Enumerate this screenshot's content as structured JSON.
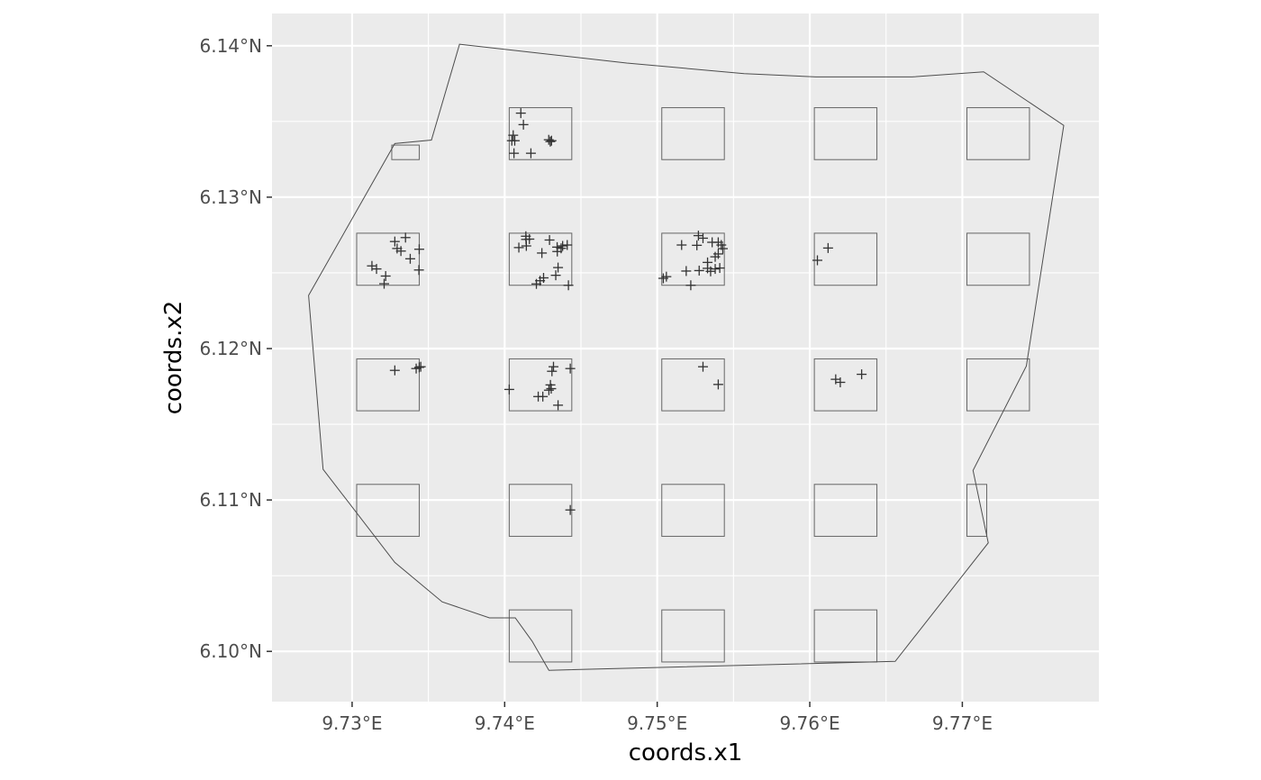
{
  "chart_data": {
    "type": "scatter",
    "title": "",
    "xlabel": "coords.x1",
    "ylabel": "coords.x2",
    "xlim": [
      9.72475,
      9.77895
    ],
    "ylim": [
      6.09668,
      6.14213
    ],
    "x_ticks": [
      {
        "value": 9.73,
        "label": "9.73°E"
      },
      {
        "value": 9.74,
        "label": "9.74°E"
      },
      {
        "value": 9.75,
        "label": "9.75°E"
      },
      {
        "value": 9.76,
        "label": "9.76°E"
      },
      {
        "value": 9.77,
        "label": "9.77°E"
      }
    ],
    "y_ticks": [
      {
        "value": 6.1,
        "label": "6.10°N"
      },
      {
        "value": 6.11,
        "label": "6.11°N"
      },
      {
        "value": 6.12,
        "label": "6.12°N"
      },
      {
        "value": 6.13,
        "label": "6.13°N"
      },
      {
        "value": 6.14,
        "label": "6.14°N"
      }
    ],
    "grid": true,
    "legend": "none",
    "colors": {
      "panel": "#ebebeb",
      "grid": "#ffffff",
      "outline": "#4d4d4d",
      "quadrat": "#666666",
      "point": "#333333"
    },
    "boundary": [
      [
        9.73704,
        6.1401
      ],
      [
        9.748,
        6.13886
      ],
      [
        9.7557,
        6.13816
      ],
      [
        9.7604,
        6.13794
      ],
      [
        9.7667,
        6.13794
      ],
      [
        9.7714,
        6.13828
      ],
      [
        9.77665,
        6.13474
      ],
      [
        9.7742,
        6.11885
      ],
      [
        9.7707,
        6.11195
      ],
      [
        9.7717,
        6.10717
      ],
      [
        9.7656,
        6.09934
      ],
      [
        9.7429,
        6.09875
      ],
      [
        9.7418,
        6.10067
      ],
      [
        9.7407,
        6.10221
      ],
      [
        9.739,
        6.10221
      ],
      [
        9.7359,
        6.10327
      ],
      [
        9.7328,
        6.10588
      ],
      [
        9.7281,
        6.11203
      ],
      [
        9.72715,
        6.12351
      ],
      [
        9.7328,
        6.13354
      ],
      [
        9.7352,
        6.13377
      ]
    ],
    "quadrats": [
      {
        "x0": 9.7326,
        "x1": 9.7344,
        "y0": 6.13248,
        "y1": 6.13344
      },
      {
        "x0": 9.7403,
        "x1": 9.7444,
        "y0": 6.13248,
        "y1": 6.13591
      },
      {
        "x0": 9.7503,
        "x1": 9.7544,
        "y0": 6.13248,
        "y1": 6.13591
      },
      {
        "x0": 9.7603,
        "x1": 9.7644,
        "y0": 6.13248,
        "y1": 6.13591
      },
      {
        "x0": 9.7703,
        "x1": 9.7744,
        "y0": 6.13248,
        "y1": 6.13591
      },
      {
        "x0": 9.7303,
        "x1": 9.7344,
        "y0": 6.12418,
        "y1": 6.12762
      },
      {
        "x0": 9.7403,
        "x1": 9.7444,
        "y0": 6.12418,
        "y1": 6.12762
      },
      {
        "x0": 9.7503,
        "x1": 9.7544,
        "y0": 6.12418,
        "y1": 6.12762
      },
      {
        "x0": 9.7603,
        "x1": 9.7644,
        "y0": 6.12418,
        "y1": 6.12762
      },
      {
        "x0": 9.7703,
        "x1": 9.7744,
        "y0": 6.12418,
        "y1": 6.12762
      },
      {
        "x0": 9.7303,
        "x1": 9.7344,
        "y0": 6.11589,
        "y1": 6.11932
      },
      {
        "x0": 9.7403,
        "x1": 9.7444,
        "y0": 6.11589,
        "y1": 6.11932
      },
      {
        "x0": 9.7503,
        "x1": 9.7544,
        "y0": 6.11589,
        "y1": 6.11932
      },
      {
        "x0": 9.7603,
        "x1": 9.7644,
        "y0": 6.11589,
        "y1": 6.11932
      },
      {
        "x0": 9.7703,
        "x1": 9.7744,
        "y0": 6.11589,
        "y1": 6.11932
      },
      {
        "x0": 9.7303,
        "x1": 9.7344,
        "y0": 6.1076,
        "y1": 6.11103
      },
      {
        "x0": 9.7403,
        "x1": 9.7444,
        "y0": 6.1076,
        "y1": 6.11103
      },
      {
        "x0": 9.7503,
        "x1": 9.7544,
        "y0": 6.1076,
        "y1": 6.11103
      },
      {
        "x0": 9.7603,
        "x1": 9.7644,
        "y0": 6.1076,
        "y1": 6.11103
      },
      {
        "x0": 9.7703,
        "x1": 9.7716,
        "y0": 6.1076,
        "y1": 6.11103
      },
      {
        "x0": 9.7403,
        "x1": 9.7444,
        "y0": 6.0993,
        "y1": 6.10274
      },
      {
        "x0": 9.7503,
        "x1": 9.7544,
        "y0": 6.0993,
        "y1": 6.10274
      },
      {
        "x0": 9.7603,
        "x1": 9.7644,
        "y0": 6.0993,
        "y1": 6.10274
      }
    ],
    "points": [
      [
        9.74106,
        6.13555
      ],
      [
        9.74123,
        6.13479
      ],
      [
        9.74056,
        6.13409
      ],
      [
        9.74047,
        6.13373
      ],
      [
        9.74066,
        6.13373
      ],
      [
        9.74061,
        6.1329
      ],
      [
        9.74172,
        6.1329
      ],
      [
        9.74289,
        6.13379
      ],
      [
        9.74299,
        6.13367
      ],
      [
        9.74307,
        6.13373
      ],
      [
        9.7328,
        6.12707
      ],
      [
        9.7335,
        6.12733
      ],
      [
        9.73295,
        6.12661
      ],
      [
        9.7332,
        6.12644
      ],
      [
        9.7344,
        6.12656
      ],
      [
        9.73381,
        6.12593
      ],
      [
        9.7313,
        6.12546
      ],
      [
        9.7316,
        6.12526
      ],
      [
        9.7322,
        6.12479
      ],
      [
        9.7321,
        6.12428
      ],
      [
        9.73438,
        6.12519
      ],
      [
        9.74139,
        6.12742
      ],
      [
        9.7414,
        6.12721
      ],
      [
        9.74162,
        6.12723
      ],
      [
        9.74142,
        6.12678
      ],
      [
        9.74093,
        6.12667
      ],
      [
        9.74244,
        6.12631
      ],
      [
        9.74294,
        6.12717
      ],
      [
        9.74344,
        6.1267
      ],
      [
        9.7438,
        6.12678
      ],
      [
        9.7441,
        6.12684
      ],
      [
        9.7437,
        6.12662
      ],
      [
        9.74345,
        6.12641
      ],
      [
        9.7435,
        6.12535
      ],
      [
        9.74335,
        6.12484
      ],
      [
        9.74255,
        6.12467
      ],
      [
        9.74232,
        6.12448
      ],
      [
        9.74208,
        6.12427
      ],
      [
        9.74418,
        6.12418
      ],
      [
        9.7516,
        6.12684
      ],
      [
        9.7526,
        6.12682
      ],
      [
        9.7527,
        6.12746
      ],
      [
        9.753,
        6.12729
      ],
      [
        9.7536,
        6.12702
      ],
      [
        9.754,
        6.12702
      ],
      [
        9.7542,
        6.12684
      ],
      [
        9.7543,
        6.1266
      ],
      [
        9.754,
        6.12625
      ],
      [
        9.7538,
        6.12606
      ],
      [
        9.7533,
        6.12569
      ],
      [
        9.7533,
        6.1253
      ],
      [
        9.7538,
        6.12526
      ],
      [
        9.7541,
        6.12532
      ],
      [
        9.7535,
        6.1251
      ],
      [
        9.75275,
        6.12515
      ],
      [
        9.7519,
        6.12512
      ],
      [
        9.7522,
        6.12418
      ],
      [
        9.7504,
        6.12464
      ],
      [
        9.7506,
        6.12475
      ],
      [
        9.7328,
        6.11856
      ],
      [
        9.7342,
        6.11868
      ],
      [
        9.7344,
        6.11876
      ],
      [
        9.7345,
        6.1188
      ],
      [
        9.7403,
        6.1173
      ],
      [
        9.7432,
        6.1188
      ],
      [
        9.7431,
        6.1185
      ],
      [
        9.743,
        6.1176
      ],
      [
        9.74305,
        6.11735
      ],
      [
        9.7429,
        6.11725
      ],
      [
        9.7443,
        6.11868
      ],
      [
        9.7422,
        6.11683
      ],
      [
        9.7425,
        6.11683
      ],
      [
        9.7435,
        6.11626
      ],
      [
        9.753,
        6.1188
      ],
      [
        9.754,
        6.11763
      ],
      [
        9.7617,
        6.11797
      ],
      [
        9.762,
        6.11777
      ],
      [
        9.7634,
        6.1183
      ],
      [
        9.7605,
        6.12583
      ],
      [
        9.7612,
        6.12664
      ],
      [
        9.7443,
        6.10934
      ]
    ]
  }
}
